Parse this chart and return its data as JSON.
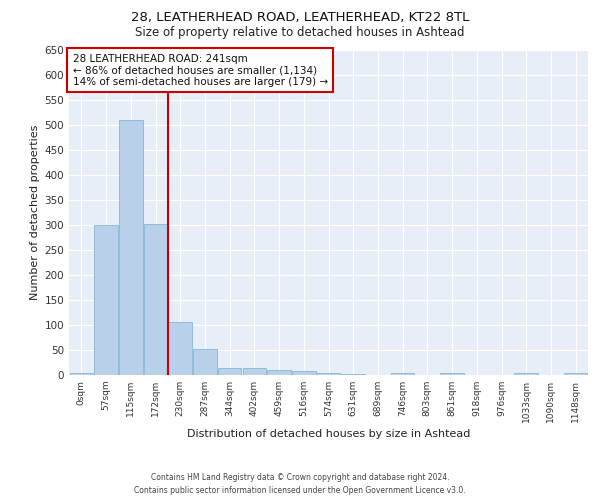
{
  "title_line1": "28, LEATHERHEAD ROAD, LEATHERHEAD, KT22 8TL",
  "title_line2": "Size of property relative to detached houses in Ashtead",
  "xlabel": "Distribution of detached houses by size in Ashtead",
  "ylabel": "Number of detached properties",
  "bar_labels": [
    "0sqm",
    "57sqm",
    "115sqm",
    "172sqm",
    "230sqm",
    "287sqm",
    "344sqm",
    "402sqm",
    "459sqm",
    "516sqm",
    "574sqm",
    "631sqm",
    "689sqm",
    "746sqm",
    "803sqm",
    "861sqm",
    "918sqm",
    "976sqm",
    "1033sqm",
    "1090sqm",
    "1148sqm"
  ],
  "bar_values": [
    5,
    300,
    510,
    302,
    107,
    53,
    14,
    15,
    11,
    8,
    5,
    3,
    0,
    5,
    0,
    5,
    0,
    0,
    5,
    0,
    5
  ],
  "bar_color": "#b8d0ea",
  "bar_edgecolor": "#7aadd4",
  "background_color": "#e8eef8",
  "grid_color": "#ffffff",
  "ylim_max": 650,
  "yticks": [
    0,
    50,
    100,
    150,
    200,
    250,
    300,
    350,
    400,
    450,
    500,
    550,
    600,
    650
  ],
  "annotation_text": "28 LEATHERHEAD ROAD: 241sqm\n← 86% of detached houses are smaller (1,134)\n14% of semi-detached houses are larger (179) →",
  "vline_index": 3.5,
  "vline_color": "#cc0000",
  "annotation_box_facecolor": "#ffffff",
  "annotation_box_edgecolor": "#cc0000",
  "footer_line1": "Contains HM Land Registry data © Crown copyright and database right 2024.",
  "footer_line2": "Contains public sector information licensed under the Open Government Licence v3.0."
}
